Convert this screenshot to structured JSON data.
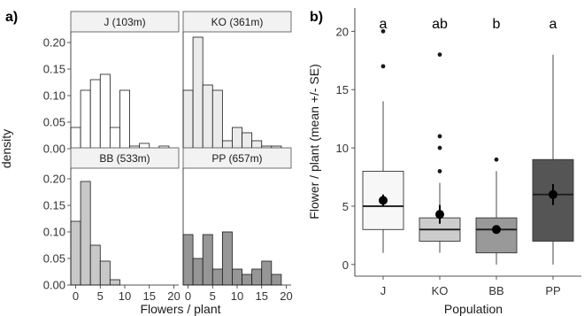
{
  "chart_data": [
    {
      "panel_tag": "a)",
      "type": "bar",
      "subtype": "faceted histogram",
      "ylabel": "density",
      "xlabel": "Flowers / plant",
      "x_ticks": [
        "0",
        "5",
        "10",
        "15",
        "20"
      ],
      "y_ticks": [
        "0.00",
        "0.05",
        "0.10",
        "0.15",
        "0.20"
      ],
      "xlim": [
        -1,
        21
      ],
      "ylim": [
        0,
        0.22
      ],
      "bin_width": 2,
      "bin_edges": [
        -1,
        1,
        3,
        5,
        7,
        9,
        11,
        13,
        15,
        17,
        19
      ],
      "grid": false,
      "facets": [
        {
          "label": "J (103m)",
          "fill": "#ffffff",
          "values": [
            0.04,
            0.11,
            0.13,
            0.14,
            0.04,
            0.11,
            0.005,
            0.01,
            0.0,
            0.005
          ]
        },
        {
          "label": "KO (361m)",
          "fill": "#ebebeb",
          "values": [
            0.11,
            0.21,
            0.12,
            0.11,
            0.015,
            0.04,
            0.03,
            0.015,
            0.005,
            0.005
          ]
        },
        {
          "label": "BB (533m)",
          "fill": "#c8c8c8",
          "values": [
            0.12,
            0.195,
            0.075,
            0.045,
            0.01,
            0.0,
            0.0,
            0.0,
            0.0,
            0.0
          ]
        },
        {
          "label": "PP (657m)",
          "fill": "#969696",
          "values": [
            0.095,
            0.05,
            0.095,
            0.03,
            0.1,
            0.03,
            0.02,
            0.03,
            0.045,
            0.02
          ]
        }
      ]
    },
    {
      "panel_tag": "b)",
      "type": "boxplot",
      "ylabel": "Flower / plant (mean +/- SE)",
      "xlabel": "Population",
      "categories": [
        "J",
        "KO",
        "BB",
        "PP"
      ],
      "y_ticks": [
        "0",
        "5",
        "10",
        "15",
        "20"
      ],
      "ylim": [
        -1,
        22
      ],
      "grid": false,
      "significance_letters": [
        "a",
        "ab",
        "b",
        "a"
      ],
      "box_fills": [
        "#f7f7f7",
        "#cccccc",
        "#999999",
        "#555555"
      ],
      "boxes": [
        {
          "min": 1,
          "q1": 3,
          "median": 5,
          "q3": 8,
          "max": 14,
          "outliers": [
            17,
            20
          ]
        },
        {
          "min": 1,
          "q1": 2,
          "median": 3,
          "q3": 4,
          "max": 7,
          "outliers": [
            8,
            10,
            11,
            18
          ]
        },
        {
          "min": 0,
          "q1": 1,
          "median": 3,
          "q3": 4,
          "max": 8,
          "outliers": [
            9
          ]
        },
        {
          "min": 0,
          "q1": 2,
          "median": 6,
          "q3": 9,
          "max": 18,
          "outliers": []
        }
      ],
      "means": [
        5.5,
        4.3,
        3.0,
        6.0
      ],
      "se": [
        0.5,
        0.8,
        0.3,
        0.9
      ]
    }
  ]
}
